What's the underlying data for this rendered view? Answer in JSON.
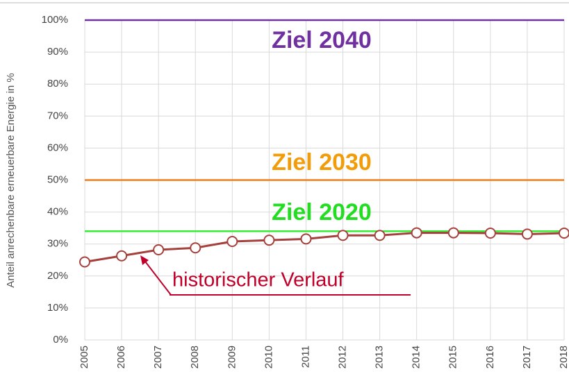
{
  "chart_data": {
    "type": "line",
    "y_label": "Anteil anrechenbare erneuerbare Energie in %",
    "categories": [
      "2005",
      "2006",
      "2007",
      "2008",
      "2009",
      "2010",
      "2011",
      "2012",
      "2013",
      "2014",
      "2015",
      "2016",
      "2017",
      "2018"
    ],
    "series": [
      {
        "name": "historischer Verlauf",
        "color": "#a5403c",
        "values": [
          24.4,
          26.3,
          28.2,
          28.8,
          30.8,
          31.2,
          31.6,
          32.7,
          32.7,
          33.5,
          33.5,
          33.4,
          33.1,
          33.4
        ]
      }
    ],
    "targets": [
      {
        "label": "Ziel 2040",
        "value": 100,
        "color": "#7030a0",
        "text_color": "#7030a0"
      },
      {
        "label": "Ziel 2030",
        "value": 50,
        "color": "#ee7d1a",
        "text_color": "#f29c0a"
      },
      {
        "label": "Ziel 2020",
        "value": 34,
        "color": "#33ee33",
        "text_color": "#22dd22"
      }
    ],
    "ylim": [
      0,
      100
    ],
    "yticks": [
      {
        "value": 0,
        "label": "0%"
      },
      {
        "value": 10,
        "label": "10%"
      },
      {
        "value": 20,
        "label": "20%"
      },
      {
        "value": 30,
        "label": "30%"
      },
      {
        "value": 40,
        "label": "40%"
      },
      {
        "value": 50,
        "label": "50%"
      },
      {
        "value": 60,
        "label": "60%"
      },
      {
        "value": 70,
        "label": "70%"
      },
      {
        "value": 80,
        "label": "80%"
      },
      {
        "value": 90,
        "label": "90%"
      },
      {
        "value": 100,
        "label": "100%"
      }
    ],
    "annotation_color": "#c0002a",
    "grid": true
  }
}
